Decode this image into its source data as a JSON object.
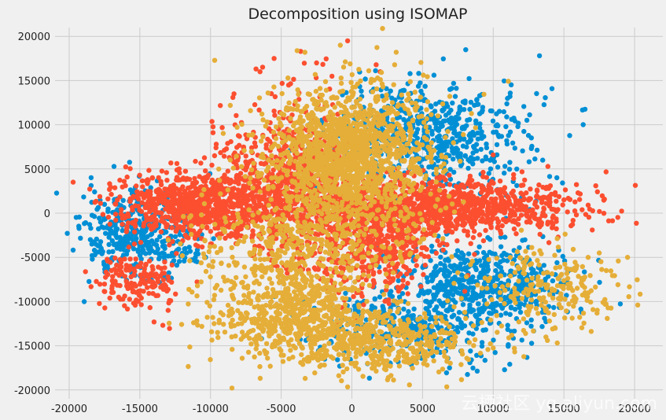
{
  "chart_data": {
    "type": "scatter",
    "title": "Decomposition using ISOMAP",
    "xlabel": "",
    "ylabel": "",
    "xlim": [
      -21000,
      22000
    ],
    "ylim": [
      -21000,
      21000
    ],
    "x_ticks": [
      -20000,
      -15000,
      -10000,
      -5000,
      0,
      5000,
      10000,
      15000,
      20000
    ],
    "y_ticks": [
      -20000,
      -15000,
      -10000,
      -5000,
      0,
      5000,
      10000,
      15000,
      20000
    ],
    "grid": true,
    "legend": "none",
    "series": [
      {
        "color": "#008fd5",
        "clusters": [
          {
            "cx": -15000,
            "cy": -2500,
            "sx": 2000,
            "sy": 2500,
            "n": 420
          },
          {
            "cx": 5500,
            "cy": 9000,
            "sx": 3500,
            "sy": 3000,
            "n": 650
          },
          {
            "cx": 9000,
            "cy": -8000,
            "sx": 3000,
            "sy": 2500,
            "n": 550
          },
          {
            "cx": 4000,
            "cy": -13000,
            "sx": 3500,
            "sy": 2000,
            "n": 300
          }
        ],
        "extra_points": [
          [
            -18500,
            -3000
          ],
          [
            -17500,
            1000
          ],
          [
            -13000,
            -7500
          ],
          [
            15000,
            -8000
          ],
          [
            13500,
            6000
          ],
          [
            14500,
            4000
          ]
        ]
      },
      {
        "color": "#fc4f30",
        "clusters": [
          {
            "cx": -10500,
            "cy": 1000,
            "sx": 3000,
            "sy": 1800,
            "n": 900
          },
          {
            "cx": -4000,
            "cy": 4000,
            "sx": 2500,
            "sy": 4500,
            "n": 650
          },
          {
            "cx": 6000,
            "cy": 800,
            "sx": 5000,
            "sy": 1600,
            "n": 1100
          },
          {
            "cx": 1000,
            "cy": -3500,
            "sx": 2500,
            "sy": 3000,
            "n": 500
          },
          {
            "cx": -15000,
            "cy": -7500,
            "sx": 1500,
            "sy": 1500,
            "n": 160
          }
        ],
        "extra_points": [
          [
            -300,
            19500
          ],
          [
            -5500,
            17500
          ],
          [
            -6500,
            16000
          ],
          [
            2000,
            16000
          ],
          [
            -2500,
            17000
          ],
          [
            16000,
            2300
          ],
          [
            15000,
            1500
          ],
          [
            -13000,
            -11000
          ],
          [
            -16500,
            -9500
          ]
        ]
      },
      {
        "color": "#e5ae38",
        "clusters": [
          {
            "cx": -500,
            "cy": 6500,
            "sx": 3000,
            "sy": 4000,
            "n": 1500
          },
          {
            "cx": -4500,
            "cy": -11000,
            "sx": 2500,
            "sy": 2500,
            "n": 600
          },
          {
            "cx": 2000,
            "cy": -14500,
            "sx": 3500,
            "sy": 1800,
            "n": 500
          },
          {
            "cx": 14000,
            "cy": -8500,
            "sx": 2500,
            "sy": 2500,
            "n": 220
          },
          {
            "cx": -3500,
            "cy": -3500,
            "sx": 4000,
            "sy": 2500,
            "n": 380
          }
        ],
        "extra_points": [
          [
            19500,
            -5000
          ],
          [
            17500,
            -4500
          ],
          [
            16500,
            -9000
          ],
          [
            18000,
            -6500
          ],
          [
            -9500,
            -13500
          ],
          [
            -8500,
            -14000
          ]
        ]
      }
    ]
  },
  "watermark": {
    "text": "云栖社区 yq.aliyun.com"
  }
}
